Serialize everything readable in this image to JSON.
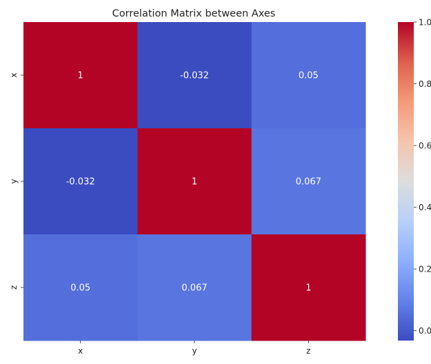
{
  "chart_data": {
    "type": "heatmap",
    "title": "Correlation Matrix between Axes",
    "xlabel": "",
    "ylabel": "",
    "x_categories": [
      "x",
      "y",
      "z"
    ],
    "y_categories": [
      "x",
      "y",
      "z"
    ],
    "values": [
      [
        1.0,
        -0.032,
        0.05
      ],
      [
        -0.032,
        1.0,
        0.067
      ],
      [
        0.05,
        0.067,
        1.0
      ]
    ],
    "annotations": [
      [
        "1",
        "-0.032",
        "0.05"
      ],
      [
        "-0.032",
        "1",
        "0.067"
      ],
      [
        "0.05",
        "0.067",
        "1"
      ]
    ],
    "colormap": "coolwarm",
    "colorbar": {
      "range": [
        -0.032,
        1.0
      ],
      "ticks": [
        0.0,
        0.2,
        0.4,
        0.6,
        0.8,
        1.0
      ],
      "tick_labels": [
        "0.0",
        "0.2",
        "0.4",
        "0.6",
        "0.8",
        "1.0"
      ]
    },
    "annotation_color": "#ffffff"
  }
}
